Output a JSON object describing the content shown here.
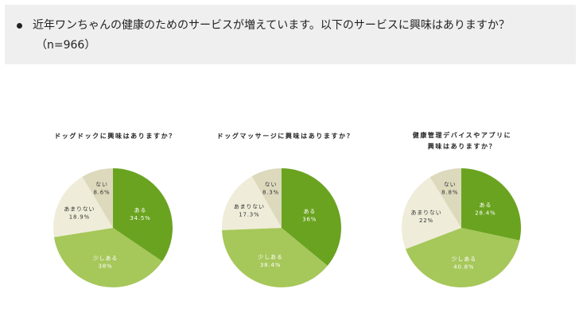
{
  "question": {
    "text": "近年ワンちゃんの健康のためのサービスが増えています。以下のサービスに興味はありますか？",
    "sample": "（n=966）"
  },
  "colors": {
    "aru": "#6aa320",
    "sukoshi": "#a6c75a",
    "amari": "#efedd9",
    "nai": "#ddd9bd"
  },
  "chart_data": [
    {
      "type": "pie",
      "title": "ドッグドックに興味はありますか？",
      "slices": [
        {
          "label": "ある",
          "value": 34.5,
          "display": "34.5%"
        },
        {
          "label": "少しある",
          "value": 38,
          "display": "38%"
        },
        {
          "label": "あまりない",
          "value": 18.9,
          "display": "18.9%"
        },
        {
          "label": "ない",
          "value": 8.6,
          "display": "8.6%"
        }
      ]
    },
    {
      "type": "pie",
      "title": "ドッグマッサージに興味はありますか？",
      "slices": [
        {
          "label": "ある",
          "value": 36,
          "display": "36%"
        },
        {
          "label": "少しある",
          "value": 38.4,
          "display": "38.4%"
        },
        {
          "label": "あまりない",
          "value": 17.3,
          "display": "17.3%"
        },
        {
          "label": "ない",
          "value": 8.3,
          "display": "8.3%"
        }
      ]
    },
    {
      "type": "pie",
      "title": "健康管理デバイスやアプリに\n興味はありますか？",
      "slices": [
        {
          "label": "ある",
          "value": 28.4,
          "display": "28.4%"
        },
        {
          "label": "少しある",
          "value": 40.8,
          "display": "40.8%"
        },
        {
          "label": "あまりない",
          "value": 22,
          "display": "22%"
        },
        {
          "label": "ない",
          "value": 8.8,
          "display": "8.8%"
        }
      ]
    }
  ]
}
